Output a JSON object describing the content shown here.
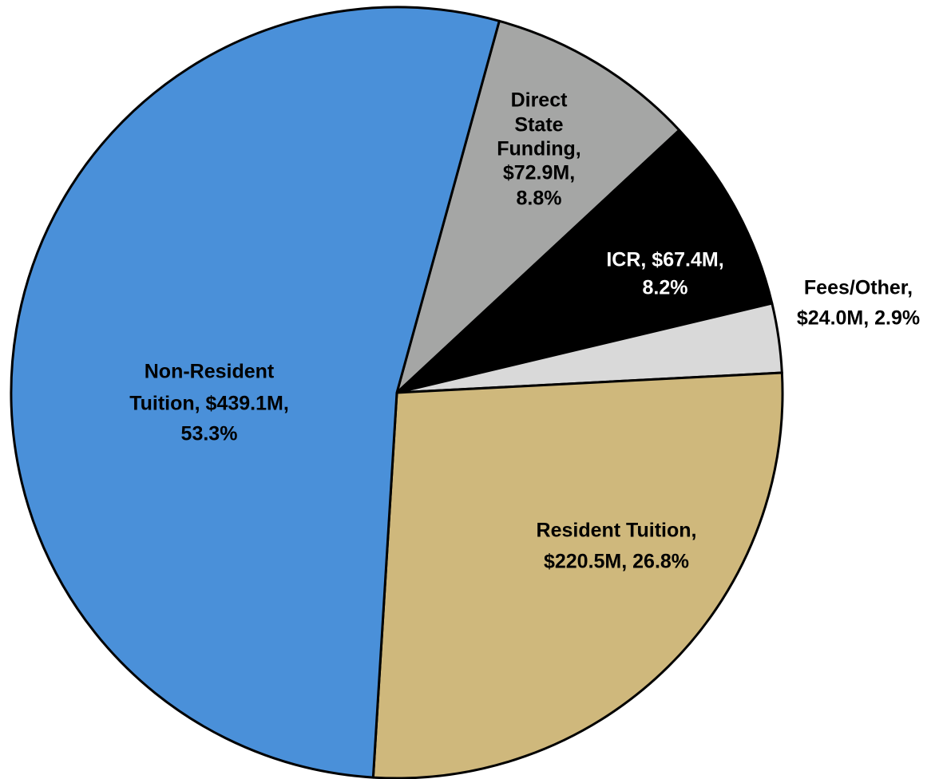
{
  "chart_data": {
    "type": "pie",
    "categories": [
      "Direct State Funding",
      "ICR",
      "Fees/Other",
      "Resident Tuition",
      "Non-Resident Tuition"
    ],
    "values": [
      8.8,
      8.2,
      2.9,
      26.8,
      53.3
    ],
    "colors": [
      "#a5a6a5",
      "#000000",
      "#d9d9d9",
      "#cfb87c",
      "#4a90d9"
    ],
    "label_lines": [
      [
        "Direct",
        "State",
        "Funding,",
        "$72.9M,",
        "8.8%"
      ],
      [
        "ICR, $67.4M,",
        "8.2%"
      ],
      [
        "Fees/Other,",
        "$24.0M, 2.9%"
      ],
      [
        "Resident Tuition,",
        "$220.5M, 26.8%"
      ],
      [
        "Non-Resident",
        "Tuition, $439.1M,",
        "53.3%"
      ]
    ]
  }
}
